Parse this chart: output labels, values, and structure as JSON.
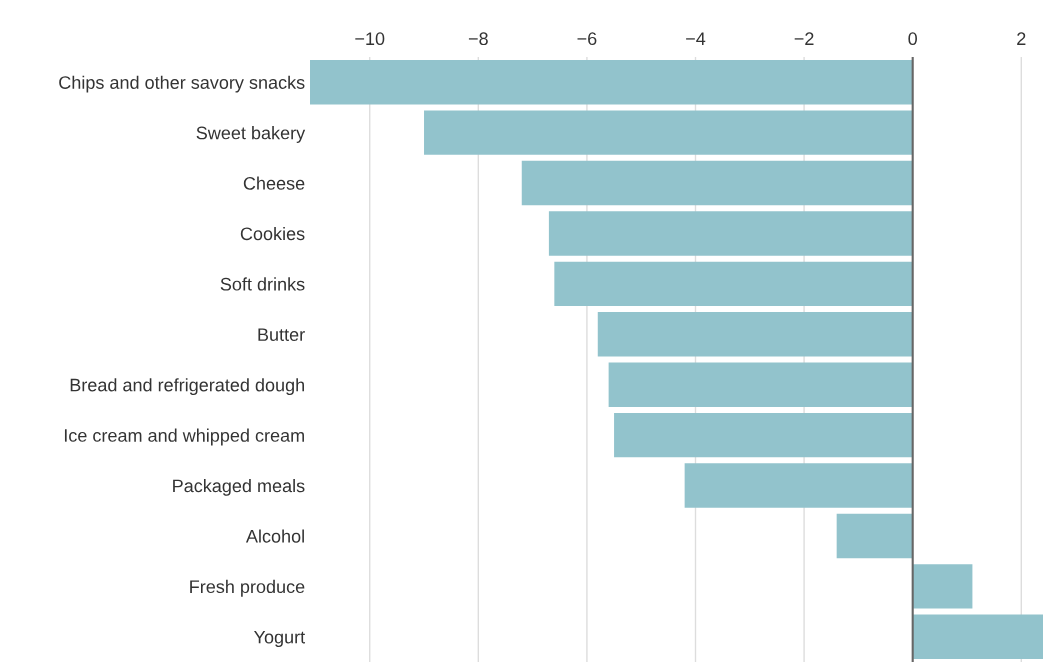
{
  "chart_data": {
    "type": "bar",
    "orientation": "horizontal",
    "categories": [
      "Chips and other savory snacks",
      "Sweet bakery",
      "Cheese",
      "Cookies",
      "Soft drinks",
      "Butter",
      "Bread and refrigerated dough",
      "Ice cream and whipped cream",
      "Packaged meals",
      "Alcohol",
      "Fresh produce",
      "Yogurt"
    ],
    "values": [
      -11.1,
      -9.0,
      -7.2,
      -6.7,
      -6.6,
      -5.8,
      -5.6,
      -5.5,
      -4.2,
      -1.4,
      1.1,
      2.4
    ],
    "color": "#92c3cc",
    "xlim": [
      -11.1,
      2.4
    ],
    "xticks": [
      -10,
      -8,
      -6,
      -4,
      -2,
      0,
      2
    ],
    "grid": "x",
    "legend": false,
    "ref_lines": [
      {
        "axis": "x",
        "value": 0,
        "color": "#666666"
      }
    ]
  }
}
